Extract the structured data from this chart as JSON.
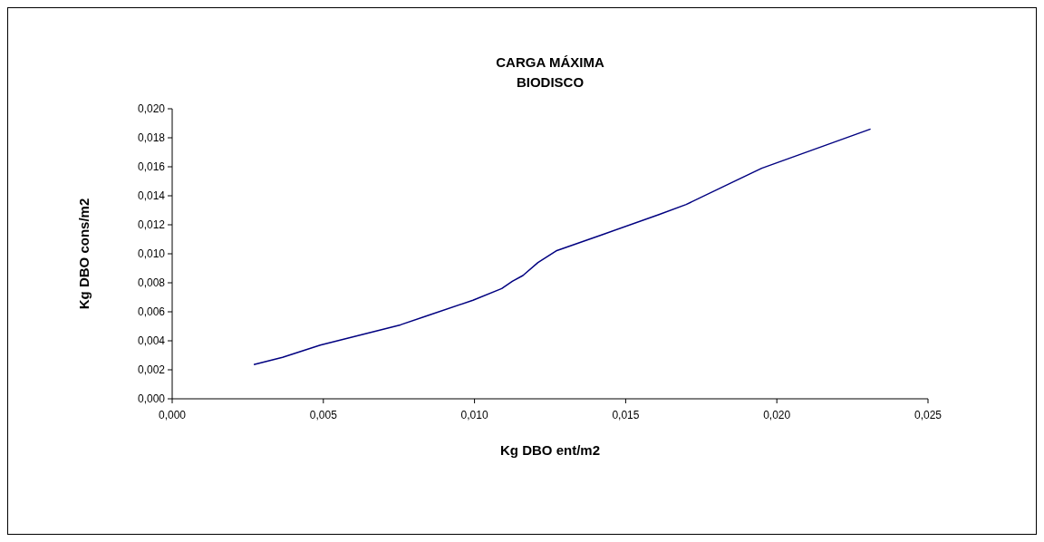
{
  "chart_data": {
    "type": "line",
    "title": "CARGA MÁXIMA\nBIODISCO",
    "xlabel": "Kg DBO ent/m2",
    "ylabel": "Kg DBO cons/m2",
    "x": [
      0.0027,
      0.00365,
      0.0049,
      0.00755,
      0.0084,
      0.00995,
      0.0109,
      0.01125,
      0.0116,
      0.0121,
      0.0127,
      0.0142,
      0.0161,
      0.017,
      0.0187,
      0.0195,
      0.0231
    ],
    "series": [
      {
        "color": "#000080",
        "values": [
          0.00236,
          0.00286,
          0.0037,
          0.0051,
          0.0057,
          0.0068,
          0.0076,
          0.0081,
          0.0085,
          0.0094,
          0.0102,
          0.0113,
          0.0127,
          0.0134,
          0.0151,
          0.0159,
          0.0186
        ]
      }
    ],
    "xlim": [
      0,
      0.025
    ],
    "xticks": [
      {
        "value": 0,
        "label": "0,000"
      },
      {
        "value": 0.005,
        "label": "0,005"
      },
      {
        "value": 0.01,
        "label": "0,010"
      },
      {
        "value": 0.015,
        "label": "0,015"
      },
      {
        "value": 0.02,
        "label": "0,020"
      },
      {
        "value": 0.025,
        "label": "0,025"
      }
    ],
    "ylim": [
      0,
      0.02
    ],
    "yticks": [
      {
        "value": 0,
        "label": "0,000"
      },
      {
        "value": 0.002,
        "label": "0,002"
      },
      {
        "value": 0.004,
        "label": "0,004"
      },
      {
        "value": 0.006,
        "label": "0,006"
      },
      {
        "value": 0.008,
        "label": "0,008"
      },
      {
        "value": 0.01,
        "label": "0,010"
      },
      {
        "value": 0.012,
        "label": "0,012"
      },
      {
        "value": 0.014,
        "label": "0,014"
      },
      {
        "value": 0.016,
        "label": "0,016"
      },
      {
        "value": 0.018,
        "label": "0,018"
      },
      {
        "value": 0.02,
        "label": "0,020"
      }
    ],
    "grid": false,
    "marker": "none",
    "line_style": "solid"
  }
}
